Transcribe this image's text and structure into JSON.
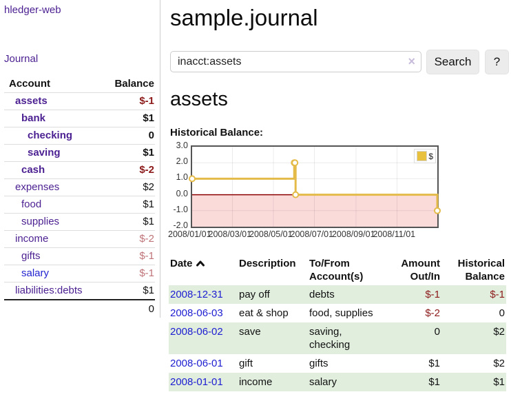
{
  "app": {
    "brand": "hledger-web"
  },
  "sidebar": {
    "nav_journal": "Journal",
    "accounts_table": {
      "header_account": "Account",
      "header_balance": "Balance",
      "rows": [
        {
          "name": "assets",
          "depth": 0,
          "bold": true,
          "balance": "$-1",
          "tone": "neg-strong"
        },
        {
          "name": "bank",
          "depth": 1,
          "bold": true,
          "balance": "$1",
          "tone": "strong"
        },
        {
          "name": "checking",
          "depth": 2,
          "bold": true,
          "balance": "0",
          "tone": "strong"
        },
        {
          "name": "saving",
          "depth": 2,
          "bold": true,
          "balance": "$1",
          "tone": "strong"
        },
        {
          "name": "cash",
          "depth": 1,
          "bold": true,
          "balance": "$-2",
          "tone": "neg-strong"
        },
        {
          "name": "expenses",
          "depth": 0,
          "bold": false,
          "balance": "$2",
          "tone": "plain"
        },
        {
          "name": "food",
          "depth": 1,
          "bold": false,
          "balance": "$1",
          "tone": "plain"
        },
        {
          "name": "supplies",
          "depth": 1,
          "bold": false,
          "balance": "$1",
          "tone": "plain"
        },
        {
          "name": "income",
          "depth": 0,
          "bold": false,
          "balance": "$-2",
          "tone": "neg-muted"
        },
        {
          "name": "gifts",
          "depth": 1,
          "bold": false,
          "balance": "$-1",
          "tone": "neg-muted"
        },
        {
          "name": "salary",
          "depth": 1,
          "bold": false,
          "blue": true,
          "balance": "$-1",
          "tone": "neg-muted"
        },
        {
          "name": "liabilities:debts",
          "depth": 0,
          "bold": false,
          "balance": "$1",
          "tone": "plain"
        }
      ],
      "total": "0"
    }
  },
  "main": {
    "title": "sample.journal",
    "search": {
      "value": "inacct:assets",
      "clear_icon": "×",
      "button_label": "Search",
      "help_label": "?"
    },
    "account_heading": "assets",
    "chart_label": "Historical Balance:"
  },
  "chart_data": {
    "type": "line",
    "title": "Historical Balance:",
    "step": true,
    "series": [
      {
        "name": "$",
        "points": [
          {
            "x": "2008-01-01",
            "y": 1
          },
          {
            "x": "2008-06-01",
            "y": 2
          },
          {
            "x": "2008-06-02",
            "y": 2
          },
          {
            "x": "2008-06-03",
            "y": 0
          },
          {
            "x": "2008-12-31",
            "y": -1
          }
        ]
      }
    ],
    "x_domain": [
      "2008-01-01",
      "2008-12-31"
    ],
    "x_tick_labels": [
      "2008/01/01",
      "2008/03/01",
      "2008/05/01",
      "2008/07/01",
      "2008/09/01",
      "2008/11/01"
    ],
    "y_ticks": [
      "3.0",
      "2.0",
      "1.0",
      "0.0",
      "-1.0",
      "-2.0"
    ],
    "ylim": [
      -2,
      3
    ],
    "grid": true,
    "legend": {
      "label": "$",
      "position": "top-right",
      "swatch_color": "#e8c23f"
    },
    "colors": {
      "line": "#e4bb49",
      "marker_fill": "#ffffff",
      "negative_region": "#fbdada",
      "zero_line": "#8b0000",
      "border": "#545454"
    }
  },
  "register": {
    "headers": {
      "date": "Date",
      "description": "Description",
      "accounts": "To/From Account(s)",
      "amount": "Amount Out/In",
      "balance": "Historical Balance"
    },
    "rows": [
      {
        "date": "2008-12-31",
        "description": "pay off",
        "accounts": "debts",
        "amount": "$-1",
        "balance": "$-1"
      },
      {
        "date": "2008-06-03",
        "description": "eat & shop",
        "accounts": "food, supplies",
        "amount": "$-2",
        "balance": "0"
      },
      {
        "date": "2008-06-02",
        "description": "save",
        "accounts": "saving, checking",
        "amount": "0",
        "balance": "$2"
      },
      {
        "date": "2008-06-01",
        "description": "gift",
        "accounts": "gifts",
        "amount": "$1",
        "balance": "$2"
      },
      {
        "date": "2008-01-01",
        "description": "income",
        "accounts": "salary",
        "amount": "$1",
        "balance": "$1"
      }
    ]
  }
}
